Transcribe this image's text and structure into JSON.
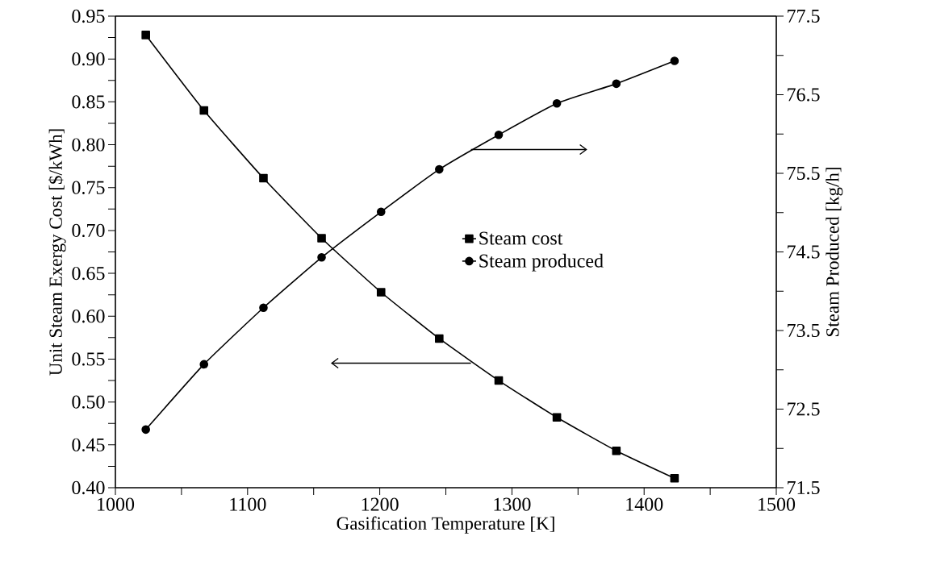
{
  "chart_data": {
    "type": "line",
    "xlabel": "Gasification Temperature [K]",
    "ylabel": "Unit Steam Exergy Cost [$/kWh]",
    "y2label": "Steam Produced [kg/h]",
    "x": [
      1023,
      1067,
      1112,
      1156,
      1201,
      1245,
      1290,
      1334,
      1379,
      1423
    ],
    "xlim": [
      1000,
      1500
    ],
    "xticks": [
      1000,
      {
        "value": 1050,
        "label": null
      },
      1100,
      {
        "value": 1150,
        "label": null
      },
      1200,
      {
        "value": 1250,
        "label": null
      },
      1300,
      {
        "value": 1350,
        "label": null
      },
      1400,
      {
        "value": 1450,
        "label": null
      },
      1500
    ],
    "ylim": [
      0.4,
      0.95
    ],
    "yticks": [
      {
        "value": 0.4,
        "label": "0.40"
      },
      {
        "value": 0.425,
        "label": null
      },
      {
        "value": 0.45,
        "label": "0.45"
      },
      {
        "value": 0.475,
        "label": null
      },
      {
        "value": 0.5,
        "label": "0.50"
      },
      {
        "value": 0.525,
        "label": null
      },
      {
        "value": 0.55,
        "label": "0.55"
      },
      {
        "value": 0.575,
        "label": null
      },
      {
        "value": 0.6,
        "label": "0.60"
      },
      {
        "value": 0.625,
        "label": null
      },
      {
        "value": 0.65,
        "label": "0.65"
      },
      {
        "value": 0.675,
        "label": null
      },
      {
        "value": 0.7,
        "label": "0.70"
      },
      {
        "value": 0.725,
        "label": null
      },
      {
        "value": 0.75,
        "label": "0.75"
      },
      {
        "value": 0.775,
        "label": null
      },
      {
        "value": 0.8,
        "label": "0.80"
      },
      {
        "value": 0.825,
        "label": null
      },
      {
        "value": 0.85,
        "label": "0.85"
      },
      {
        "value": 0.875,
        "label": null
      },
      {
        "value": 0.9,
        "label": "0.90"
      },
      {
        "value": 0.925,
        "label": null
      },
      {
        "value": 0.95,
        "label": "0.95"
      }
    ],
    "y2lim": [
      71.5,
      77.5
    ],
    "y2ticks": [
      71.5,
      {
        "value": 72,
        "label": null
      },
      72.5,
      {
        "value": 73,
        "label": null
      },
      73.5,
      {
        "value": 74,
        "label": null
      },
      74.5,
      {
        "value": 75,
        "label": null
      },
      75.5,
      {
        "value": 76,
        "label": null
      },
      76.5,
      {
        "value": 77,
        "label": null
      },
      77.5
    ],
    "series": [
      {
        "name": "Steam cost",
        "color": "#000000",
        "marker": "square",
        "values": [
          0.928,
          0.84,
          0.761,
          0.691,
          0.628,
          0.574,
          0.525,
          0.482,
          0.443,
          0.411
        ]
      },
      {
        "name": "Steam produced",
        "color": "#000000",
        "marker": "circle",
        "axis": "y2",
        "values": [
          72.24,
          73.07,
          73.79,
          74.43,
          75.01,
          75.55,
          75.99,
          76.39,
          76.64,
          76.93
        ]
      }
    ],
    "legend": "right"
  }
}
